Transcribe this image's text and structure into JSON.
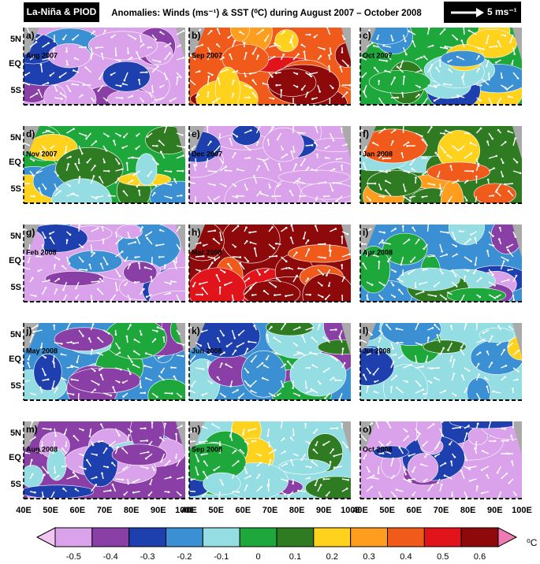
{
  "header": {
    "left_label": "La-Niña & PIOD",
    "title": "Anomalies: Winds (ms⁻¹) & SST (⁰C) during August 2007 – October 2008",
    "scale_label": "5 ms⁻¹"
  },
  "panels": [
    {
      "label": "a)",
      "date": "Aug 2007"
    },
    {
      "label": "b)",
      "date": "Sep 2007"
    },
    {
      "label": "c)",
      "date": "Oct 2007"
    },
    {
      "label": "d)",
      "date": "Nov 2007"
    },
    {
      "label": "e)",
      "date": "Dec 2007"
    },
    {
      "label": "f)",
      "date": "Jan 2008"
    },
    {
      "label": "g)",
      "date": "Feb 2008"
    },
    {
      "label": "h)",
      "date": "Mar 2008"
    },
    {
      "label": "i)",
      "date": "Apr 2008"
    },
    {
      "label": "j)",
      "date": "May 2008"
    },
    {
      "label": "k)",
      "date": "Jun 2008"
    },
    {
      "label": "l)",
      "date": "Jul 2008"
    },
    {
      "label": "m)",
      "date": "Aug 2008"
    },
    {
      "label": "n)",
      "date": "Sep 2008"
    },
    {
      "label": "o)",
      "date": "Oct 2008"
    }
  ],
  "lat_labels": [
    "5N",
    "EQ",
    "5S"
  ],
  "lon_labels": [
    "40E",
    "50E",
    "60E",
    "70E",
    "80E",
    "90E",
    "100E"
  ],
  "colorbar": {
    "ticks": [
      -0.5,
      -0.4,
      -0.3,
      -0.2,
      -0.1,
      0,
      0.1,
      0.2,
      0.3,
      0.4,
      0.5,
      0.6
    ],
    "colors": [
      "#d9a2ea",
      "#8a3fa6",
      "#1e3fae",
      "#3a90d2",
      "#94dde3",
      "#1ea83c",
      "#2e7b22",
      "#ffd21e",
      "#ff9e1e",
      "#f05a1a",
      "#e0141a",
      "#8e0a0a"
    ],
    "under_color": "#f4c6f4",
    "over_color": "#f07ab4",
    "unit": "⁰C"
  }
}
